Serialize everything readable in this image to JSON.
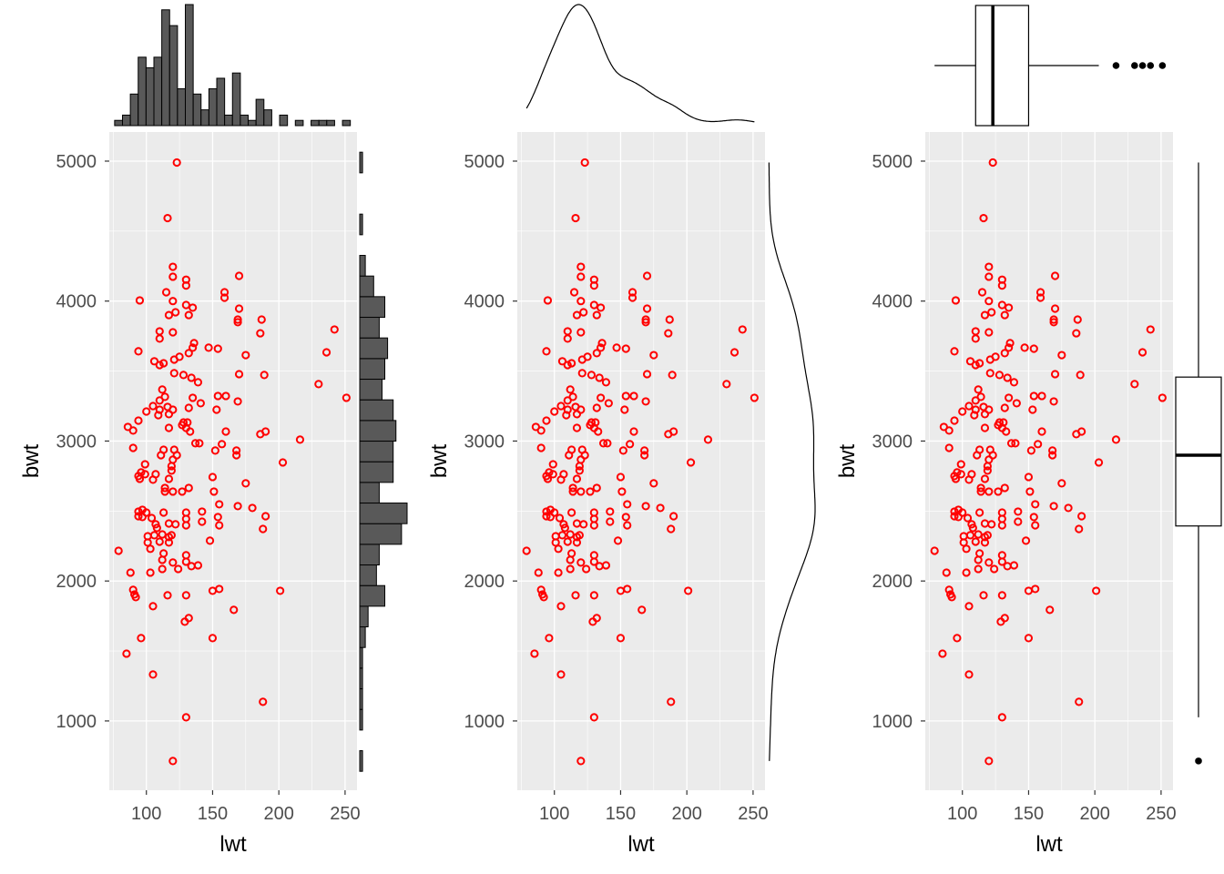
{
  "chart_data": [
    {
      "type": "scatter",
      "marginal": "histogram",
      "xlabel": "lwt",
      "ylabel": "bwt"
    },
    {
      "type": "scatter",
      "marginal": "density",
      "xlabel": "lwt",
      "ylabel": "bwt"
    },
    {
      "type": "scatter",
      "marginal": "boxplot",
      "xlabel": "lwt",
      "ylabel": "bwt"
    }
  ],
  "axes": {
    "xlim": [
      72,
      259
    ],
    "ylim": [
      505,
      5208
    ],
    "x_ticks": [
      100,
      150,
      200,
      250
    ],
    "y_ticks": [
      1000,
      2000,
      3000,
      4000,
      5000
    ],
    "x_tick_labels": [
      "100",
      "150",
      "200",
      "250"
    ],
    "y_tick_labels": [
      "1000",
      "2000",
      "3000",
      "4000",
      "5000"
    ],
    "grid": true
  },
  "colors": {
    "point": "#ff0000",
    "panel": "#ebebeb",
    "grid": "#ffffff",
    "hist_fill": "#595959"
  },
  "points": [
    [
      123,
      4990
    ],
    [
      116,
      4593
    ],
    [
      120,
      4245
    ],
    [
      120,
      4174
    ],
    [
      130,
      4153
    ],
    [
      130,
      4111
    ],
    [
      170,
      4180
    ],
    [
      159,
      4063
    ],
    [
      159,
      4024
    ],
    [
      115,
      4063
    ],
    [
      95,
      4005
    ],
    [
      120,
      4000
    ],
    [
      122,
      3920
    ],
    [
      117,
      3900
    ],
    [
      130,
      3972
    ],
    [
      135,
      3953
    ],
    [
      132,
      3900
    ],
    [
      170,
      3946
    ],
    [
      169,
      3849
    ],
    [
      169,
      3868
    ],
    [
      187,
      3868
    ],
    [
      186,
      3770
    ],
    [
      242,
      3797
    ],
    [
      110,
      3784
    ],
    [
      110,
      3732
    ],
    [
      120,
      3777
    ],
    [
      136,
      3700
    ],
    [
      135,
      3667
    ],
    [
      132,
      3628
    ],
    [
      125,
      3602
    ],
    [
      106,
      3570
    ],
    [
      113,
      3556
    ],
    [
      121,
      3582
    ],
    [
      147,
      3667
    ],
    [
      154,
      3660
    ],
    [
      175,
      3614
    ],
    [
      236,
      3634
    ],
    [
      110,
      3543
    ],
    [
      121,
      3485
    ],
    [
      94,
      3641
    ],
    [
      128,
      3472
    ],
    [
      134,
      3452
    ],
    [
      189,
      3472
    ],
    [
      170,
      3478
    ],
    [
      230,
      3407
    ],
    [
      139,
      3420
    ],
    [
      135,
      3309
    ],
    [
      112,
      3368
    ],
    [
      110,
      3290
    ],
    [
      114,
      3316
    ],
    [
      116,
      3244
    ],
    [
      120,
      3224
    ],
    [
      117,
      3192
    ],
    [
      110,
      3224
    ],
    [
      109,
      3185
    ],
    [
      100,
      3211
    ],
    [
      105,
      3250
    ],
    [
      132,
      3237
    ],
    [
      141,
      3270
    ],
    [
      153,
      3224
    ],
    [
      160,
      3322
    ],
    [
      154,
      3322
    ],
    [
      169,
      3283
    ],
    [
      128,
      3133
    ],
    [
      130,
      3094
    ],
    [
      131,
      3133
    ],
    [
      133,
      3068
    ],
    [
      127,
      3114
    ],
    [
      117,
      3094
    ],
    [
      94,
      3146
    ],
    [
      86,
      3101
    ],
    [
      90,
      3075
    ],
    [
      160,
      3068
    ],
    [
      186,
      3049
    ],
    [
      190,
      3068
    ],
    [
      216,
      3010
    ],
    [
      251,
      3309
    ],
    [
      137,
      2984
    ],
    [
      140,
      2984
    ],
    [
      157,
      2978
    ],
    [
      152,
      2932
    ],
    [
      168,
      2932
    ],
    [
      168,
      2899
    ],
    [
      203,
      2847
    ],
    [
      113,
      2938
    ],
    [
      121,
      2938
    ],
    [
      111,
      2899
    ],
    [
      120,
      2867
    ],
    [
      119,
      2821
    ],
    [
      119,
      2789
    ],
    [
      123,
      2899
    ],
    [
      90,
      2951
    ],
    [
      99,
      2834
    ],
    [
      96,
      2776
    ],
    [
      94,
      2750
    ],
    [
      95,
      2730
    ],
    [
      99,
      2763
    ],
    [
      105,
      2724
    ],
    [
      107,
      2763
    ],
    [
      117,
      2730
    ],
    [
      114,
      2665
    ],
    [
      120,
      2639
    ],
    [
      114,
      2639
    ],
    [
      127,
      2639
    ],
    [
      132,
      2665
    ],
    [
      150,
      2743
    ],
    [
      151,
      2639
    ],
    [
      175,
      2698
    ],
    [
      169,
      2535
    ],
    [
      155,
      2548
    ],
    [
      180,
      2522
    ],
    [
      190,
      2463
    ],
    [
      188,
      2372
    ],
    [
      94,
      2496
    ],
    [
      97,
      2509
    ],
    [
      94,
      2463
    ],
    [
      97,
      2457
    ],
    [
      100,
      2489
    ],
    [
      104,
      2450
    ],
    [
      113,
      2489
    ],
    [
      107,
      2405
    ],
    [
      117,
      2411
    ],
    [
      122,
      2405
    ],
    [
      108,
      2379
    ],
    [
      106,
      2327
    ],
    [
      112,
      2333
    ],
    [
      117,
      2314
    ],
    [
      101,
      2320
    ],
    [
      130,
      2444
    ],
    [
      130,
      2398
    ],
    [
      142,
      2424
    ],
    [
      142,
      2496
    ],
    [
      130,
      2489
    ],
    [
      154,
      2457
    ],
    [
      155,
      2398
    ],
    [
      119,
      2327
    ],
    [
      148,
      2288
    ],
    [
      101,
      2275
    ],
    [
      117,
      2275
    ],
    [
      103,
      2230
    ],
    [
      110,
      2281
    ],
    [
      113,
      2197
    ],
    [
      79,
      2216
    ],
    [
      112,
      2151
    ],
    [
      120,
      2132
    ],
    [
      130,
      2184
    ],
    [
      130,
      2138
    ],
    [
      124,
      2086
    ],
    [
      134,
      2106
    ],
    [
      139,
      2112
    ],
    [
      112,
      2086
    ],
    [
      103,
      2060
    ],
    [
      88,
      2060
    ],
    [
      90,
      1937
    ],
    [
      92,
      1885
    ],
    [
      91,
      1904
    ],
    [
      105,
      1820
    ],
    [
      116,
      1898
    ],
    [
      130,
      1898
    ],
    [
      150,
      1930
    ],
    [
      155,
      1943
    ],
    [
      201,
      1930
    ],
    [
      166,
      1794
    ],
    [
      132,
      1735
    ],
    [
      129,
      1709
    ],
    [
      96,
      1592
    ],
    [
      150,
      1592
    ],
    [
      85,
      1481
    ],
    [
      105,
      1332
    ],
    [
      188,
      1137
    ],
    [
      130,
      1026
    ],
    [
      120,
      714
    ]
  ]
}
